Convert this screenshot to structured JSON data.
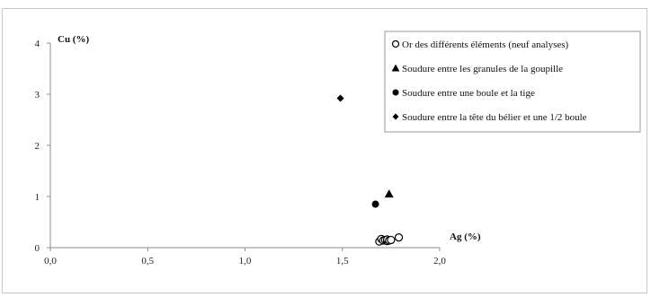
{
  "chart_data": {
    "type": "scatter",
    "title": "",
    "xlabel": "Ag (%)",
    "ylabel": "Cu (%)",
    "xlim": [
      0,
      2
    ],
    "ylim": [
      0,
      4
    ],
    "x_ticks": [
      "0,0",
      "0,5",
      "1,0",
      "1,5",
      "2,0"
    ],
    "y_ticks": [
      "0",
      "1",
      "2",
      "3",
      "4"
    ],
    "grid": false,
    "legend_position": "top-right",
    "series": [
      {
        "name": "Or des différents éléments (neuf analyses)",
        "marker": "open-circle",
        "color": "#000000",
        "points": [
          {
            "x": 1.69,
            "y": 0.12
          },
          {
            "x": 1.7,
            "y": 0.17
          },
          {
            "x": 1.71,
            "y": 0.14
          },
          {
            "x": 1.72,
            "y": 0.15
          },
          {
            "x": 1.73,
            "y": 0.13
          },
          {
            "x": 1.73,
            "y": 0.16
          },
          {
            "x": 1.74,
            "y": 0.14
          },
          {
            "x": 1.75,
            "y": 0.15
          },
          {
            "x": 1.79,
            "y": 0.2
          }
        ]
      },
      {
        "name": "Soudure entre les granules de la goupille",
        "marker": "triangle",
        "color": "#000000",
        "points": [
          {
            "x": 1.74,
            "y": 1.05
          }
        ]
      },
      {
        "name": "Soudure entre une boule et la tige",
        "marker": "filled-circle",
        "color": "#000000",
        "points": [
          {
            "x": 1.67,
            "y": 0.85
          }
        ]
      },
      {
        "name": "Soudure entre la tête du bélier et une 1/2 boule",
        "marker": "diamond",
        "color": "#000000",
        "points": [
          {
            "x": 1.49,
            "y": 2.92
          }
        ]
      }
    ]
  }
}
